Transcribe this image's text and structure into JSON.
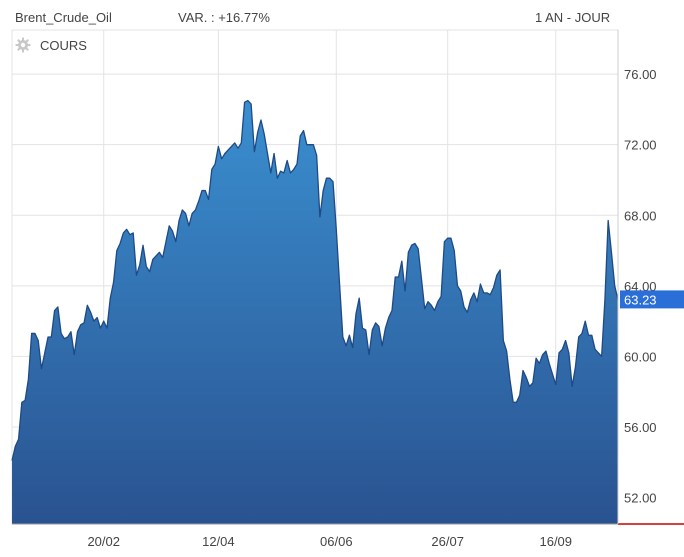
{
  "header": {
    "instrument": "Brent_Crude_Oil",
    "variation": "VAR. : +16.77%",
    "period": "1 AN - JOUR"
  },
  "legend": {
    "label": "COURS",
    "icon": "gear-icon"
  },
  "last_price": {
    "label": "63.23",
    "value": 63.23,
    "color": "#2a6ed8"
  },
  "colors": {
    "fill_top": "#3a8fd0",
    "fill_bottom": "#2a5290",
    "line": "#1e4a86",
    "grid": "#e3e3e3",
    "baseline": "#cc0000"
  },
  "chart_data": {
    "type": "area",
    "ylim": [
      50.5,
      78.5
    ],
    "yticks": [
      52,
      56,
      60,
      64,
      68,
      72,
      76
    ],
    "ytick_labels": [
      "52.00",
      "56.00",
      "60.00",
      "64.00",
      "68.00",
      "72.00",
      "76.00"
    ],
    "xticks": [
      {
        "label": "20/02",
        "index": 28
      },
      {
        "label": "12/04",
        "index": 63
      },
      {
        "label": "06/06",
        "index": 99
      },
      {
        "label": "26/07",
        "index": 133
      },
      {
        "label": "16/09",
        "index": 166
      }
    ],
    "series": [
      {
        "values": [
          54.1,
          54.9,
          55.3,
          57.4,
          57.5,
          58.7,
          61.3,
          61.3,
          60.9,
          59.3,
          60.2,
          61.1,
          61.1,
          62.6,
          62.8,
          61.3,
          61.0,
          61.1,
          61.4,
          60.1,
          61.4,
          61.8,
          61.9,
          62.9,
          62.5,
          62.0,
          62.2,
          61.6,
          62.0,
          61.6,
          63.3,
          64.2,
          66.0,
          66.4,
          67.0,
          67.2,
          66.9,
          67.0,
          64.6,
          65.2,
          66.3,
          65.1,
          64.8,
          65.5,
          65.7,
          65.9,
          65.6,
          66.5,
          67.4,
          67.1,
          66.5,
          67.7,
          68.3,
          68.1,
          67.4,
          68.1,
          68.3,
          68.8,
          69.4,
          69.4,
          68.9,
          70.6,
          70.9,
          71.9,
          71.2,
          71.5,
          71.7,
          71.9,
          72.1,
          71.8,
          72.1,
          74.4,
          74.5,
          74.3,
          71.6,
          72.7,
          73.4,
          72.6,
          71.5,
          70.4,
          71.5,
          70.1,
          70.5,
          70.4,
          71.1,
          70.4,
          70.6,
          70.9,
          72.5,
          72.8,
          72.0,
          72.0,
          72.0,
          71.4,
          67.9,
          69.4,
          70.1,
          70.1,
          69.9,
          67.2,
          64.1,
          61.1,
          60.6,
          61.2,
          60.5,
          62.4,
          63.3,
          61.6,
          61.5,
          60.1,
          61.5,
          61.9,
          61.7,
          60.6,
          61.6,
          62.2,
          62.6,
          64.5,
          64.5,
          65.4,
          63.7,
          65.9,
          66.3,
          66.4,
          66.1,
          64.4,
          62.7,
          63.1,
          62.9,
          62.6,
          63.1,
          63.4,
          66.5,
          66.7,
          66.7,
          66.0,
          64.0,
          63.7,
          62.8,
          62.5,
          63.2,
          63.6,
          63.1,
          64.1,
          63.6,
          63.6,
          63.5,
          63.9,
          64.6,
          64.9,
          60.9,
          60.3,
          58.7,
          57.4,
          57.4,
          57.8,
          59.2,
          58.8,
          58.3,
          58.5,
          59.9,
          59.6,
          60.1,
          60.3,
          59.6,
          59.0,
          58.4,
          60.2,
          60.4,
          60.9,
          60.2,
          58.3,
          59.4,
          61.1,
          61.3,
          62.0,
          61.2,
          61.2,
          60.4,
          60.2,
          60.0,
          63.2,
          67.7,
          65.9,
          64.0,
          63.2
        ]
      }
    ]
  }
}
